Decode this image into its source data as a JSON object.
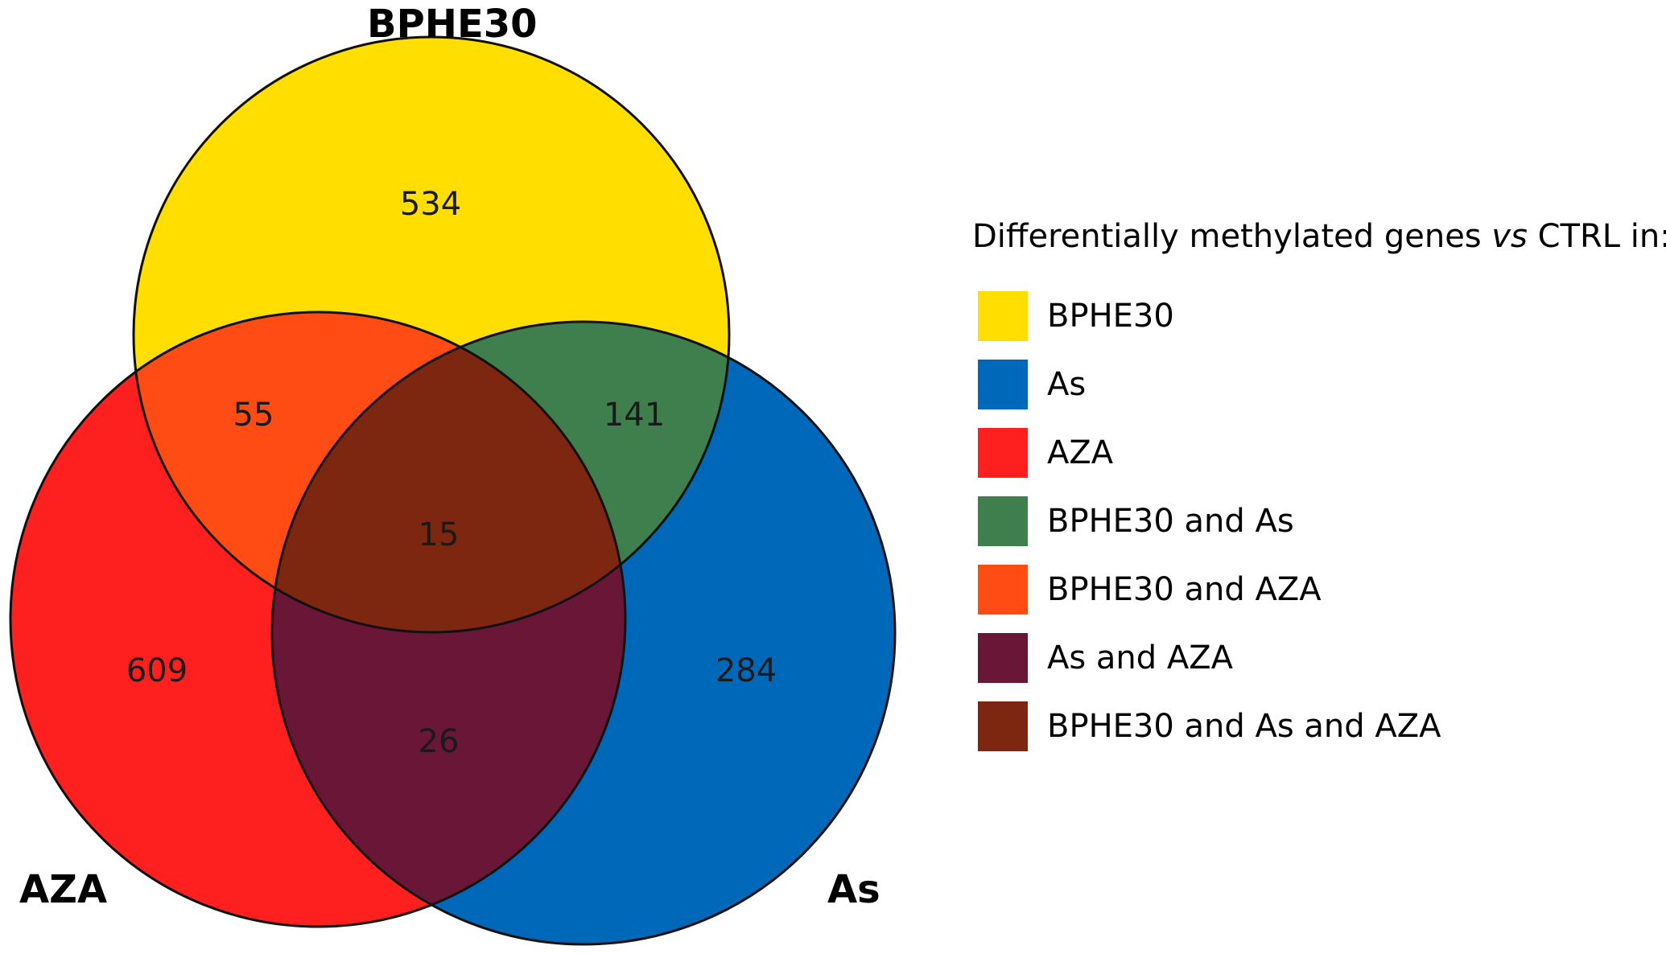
{
  "sets": {
    "bphe30": {
      "label": "BPHE30",
      "color": "#FFDE00"
    },
    "as": {
      "label": "As",
      "color": "#0068B8"
    },
    "aza": {
      "label": "AZA",
      "color": "#FE1F1F"
    }
  },
  "counts": {
    "bphe30_only": "534",
    "aza_only": "609",
    "as_only": "284",
    "bphe30_aza": "55",
    "bphe30_as": "141",
    "as_aza": "26",
    "all": "15"
  },
  "legend": {
    "title_prefix": "Differentially methylated genes ",
    "title_italic": "vs",
    "title_suffix": " CTRL in:",
    "items": [
      {
        "label": "BPHE30",
        "color": "#FFDE00"
      },
      {
        "label": "As",
        "color": "#0068B8"
      },
      {
        "label": "AZA",
        "color": "#FE1F1F"
      },
      {
        "label": "BPHE30 and As",
        "color": "#3E7F4D"
      },
      {
        "label": "BPHE30 and AZA",
        "color": "#FF4B14"
      },
      {
        "label": "As and AZA",
        "color": "#6A1636"
      },
      {
        "label": "BPHE30 and As and AZA",
        "color": "#7E2710"
      }
    ]
  }
}
